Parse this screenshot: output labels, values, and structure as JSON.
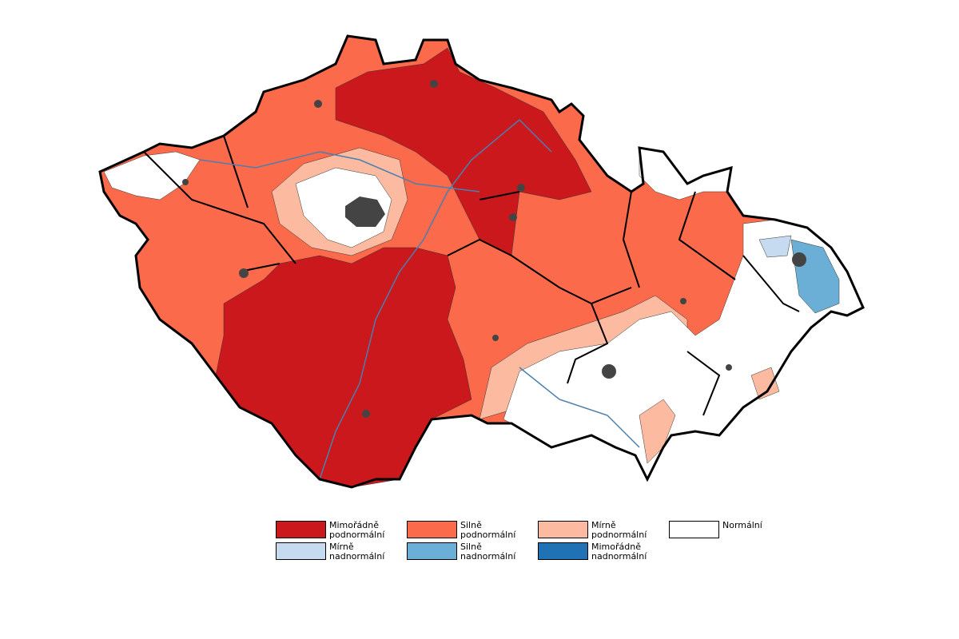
{
  "legend": {
    "items": [
      {
        "label": "Mimořádně podnormální",
        "color": "#cb181d"
      },
      {
        "label": "Silně podnormální",
        "color": "#fb6a4a"
      },
      {
        "label": "Mírně podnormální",
        "color": "#fcbba1"
      },
      {
        "label": "Normální",
        "color": "#ffffff"
      },
      {
        "label": "Mírně nadnormální",
        "color": "#c6dbef"
      },
      {
        "label": "Silně nadnormální",
        "color": "#6baed6"
      },
      {
        "label": "Mimořádně nadnormální",
        "color": "#2171b5"
      }
    ]
  }
}
